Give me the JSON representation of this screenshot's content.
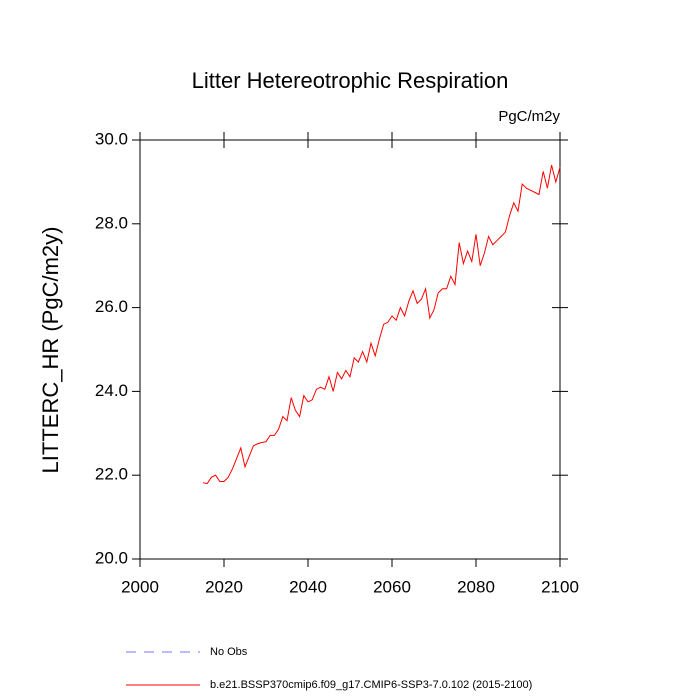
{
  "chart_data": {
    "type": "line",
    "title": "Litter Hetereotrophic Respiration",
    "units": "PgC/m2y",
    "y_label": "LITTERC_HR  (PgC/m2y)",
    "x": [
      2015,
      2016,
      2017,
      2018,
      2019,
      2020,
      2021,
      2022,
      2023,
      2024,
      2025,
      2026,
      2027,
      2028,
      2029,
      2030,
      2031,
      2032,
      2033,
      2034,
      2035,
      2036,
      2037,
      2038,
      2039,
      2040,
      2041,
      2042,
      2043,
      2044,
      2045,
      2046,
      2047,
      2048,
      2049,
      2050,
      2051,
      2052,
      2053,
      2054,
      2055,
      2056,
      2057,
      2058,
      2059,
      2060,
      2061,
      2062,
      2063,
      2064,
      2065,
      2066,
      2067,
      2068,
      2069,
      2070,
      2071,
      2072,
      2073,
      2074,
      2075,
      2076,
      2077,
      2078,
      2079,
      2080,
      2081,
      2082,
      2083,
      2084,
      2085,
      2086,
      2087,
      2088,
      2089,
      2090,
      2091,
      2092,
      2093,
      2094,
      2095,
      2096,
      2097,
      2098,
      2099,
      2100
    ],
    "series": [
      {
        "name": "b.e21.BSSP370cmip6.f09_g17.CMIP6-SSP3-7.0.102 (2015-2100)",
        "color": "#ff0000",
        "values": [
          21.82,
          21.8,
          21.95,
          22.0,
          21.85,
          21.85,
          21.95,
          22.15,
          22.4,
          22.65,
          22.2,
          22.45,
          22.7,
          22.75,
          22.78,
          22.8,
          22.95,
          22.95,
          23.1,
          23.4,
          23.3,
          23.85,
          23.55,
          23.4,
          23.9,
          23.75,
          23.8,
          24.05,
          24.1,
          24.05,
          24.35,
          24.0,
          24.45,
          24.3,
          24.5,
          24.35,
          24.8,
          24.7,
          24.95,
          24.7,
          25.15,
          24.85,
          25.25,
          25.6,
          25.65,
          25.8,
          25.7,
          26.0,
          25.8,
          26.15,
          26.4,
          26.1,
          26.2,
          26.45,
          25.75,
          25.95,
          26.35,
          26.45,
          26.45,
          26.75,
          26.55,
          27.55,
          27.05,
          27.35,
          27.1,
          27.75,
          27.0,
          27.3,
          27.7,
          27.5,
          27.6,
          27.7,
          27.8,
          28.2,
          28.5,
          28.3,
          28.95,
          28.85,
          28.8,
          28.75,
          28.7,
          29.25,
          28.85,
          29.4,
          29.0,
          29.35
        ]
      }
    ],
    "reference_legend": {
      "name": "No Obs",
      "color": "#7777ff",
      "line_style": "dashed"
    },
    "xlim": [
      2000,
      2100
    ],
    "xticks": [
      2000,
      2020,
      2040,
      2060,
      2080,
      2100
    ],
    "ylim": [
      20,
      30
    ],
    "yticks": [
      {
        "value": 20,
        "label": "20.0"
      },
      {
        "value": 22,
        "label": "22.0"
      },
      {
        "value": 24,
        "label": "24.0"
      },
      {
        "value": 26,
        "label": "26.0"
      },
      {
        "value": 28,
        "label": "28.0"
      },
      {
        "value": 30,
        "label": "30.0"
      }
    ]
  }
}
